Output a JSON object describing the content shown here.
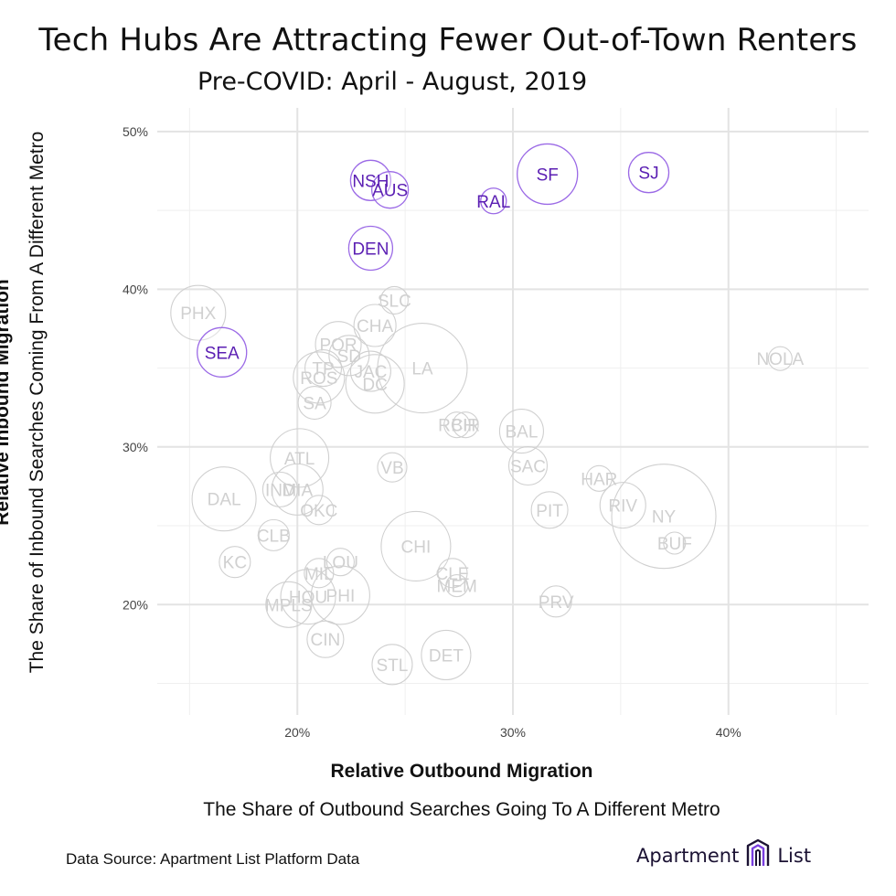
{
  "chart_data": {
    "type": "scatter",
    "title": "Tech Hubs Are Attracting Fewer Out-of-Town Renters",
    "subtitle": "Pre-COVID: April - August, 2019",
    "xlabel": "Relative Outbound Migration",
    "xlabel_sub": "The Share of Outbound Searches Going To A Different Metro",
    "ylabel": "Relative Inbound Migration",
    "ylabel_sub": "The Share of Inbound Searches Coming From A Different Metro",
    "xlim": [
      13.5,
      46.5
    ],
    "ylim": [
      13.0,
      51.5
    ],
    "x_ticks": [
      20,
      30,
      40
    ],
    "x_tick_labels": [
      "20%",
      "30%",
      "40%"
    ],
    "y_ticks": [
      20,
      30,
      40,
      50
    ],
    "y_tick_labels": [
      "20%",
      "30%",
      "40%",
      "50%"
    ],
    "grid": true,
    "highlight_color": "#5b1fb3",
    "highlight_stroke": "#9b6ae6",
    "muted_color": "#d0d0d0",
    "points": [
      {
        "label": "NSH",
        "x": 23.4,
        "y": 46.9,
        "r": 22,
        "highlight": true
      },
      {
        "label": "AUS",
        "x": 24.3,
        "y": 46.3,
        "r": 20,
        "highlight": true
      },
      {
        "label": "SF",
        "x": 31.6,
        "y": 47.3,
        "r": 33,
        "highlight": true
      },
      {
        "label": "SJ",
        "x": 36.3,
        "y": 47.4,
        "r": 22,
        "highlight": true
      },
      {
        "label": "RAL",
        "x": 29.1,
        "y": 45.6,
        "r": 14,
        "highlight": true
      },
      {
        "label": "DEN",
        "x": 23.4,
        "y": 42.6,
        "r": 24,
        "highlight": true
      },
      {
        "label": "SEA",
        "x": 16.5,
        "y": 36.0,
        "r": 27,
        "highlight": true
      },
      {
        "label": "PHX",
        "x": 15.4,
        "y": 38.5,
        "r": 30,
        "highlight": false
      },
      {
        "label": "SLC",
        "x": 24.5,
        "y": 39.3,
        "r": 15,
        "highlight": false
      },
      {
        "label": "CHA",
        "x": 23.6,
        "y": 37.7,
        "r": 23,
        "highlight": false
      },
      {
        "label": "POR",
        "x": 21.9,
        "y": 36.5,
        "r": 25,
        "highlight": false
      },
      {
        "label": "SD",
        "x": 22.4,
        "y": 35.8,
        "r": 22,
        "highlight": false
      },
      {
        "label": "LA",
        "x": 25.8,
        "y": 35.0,
        "r": 49,
        "highlight": false
      },
      {
        "label": "TP",
        "x": 21.2,
        "y": 35.0,
        "r": 20,
        "highlight": false
      },
      {
        "label": "JAC",
        "x": 23.4,
        "y": 34.8,
        "r": 22,
        "highlight": false
      },
      {
        "label": "ROS",
        "x": 21.0,
        "y": 34.4,
        "r": 28,
        "highlight": false
      },
      {
        "label": "DC",
        "x": 23.6,
        "y": 34.0,
        "r": 32,
        "highlight": false
      },
      {
        "label": "SA",
        "x": 20.8,
        "y": 32.8,
        "r": 18,
        "highlight": false
      },
      {
        "label": "NOLA",
        "x": 42.4,
        "y": 35.6,
        "r": 13,
        "highlight": false
      },
      {
        "label": "RCH",
        "x": 27.4,
        "y": 31.4,
        "r": 14,
        "highlight": false
      },
      {
        "label": "BIR",
        "x": 27.8,
        "y": 31.4,
        "r": 14,
        "highlight": false
      },
      {
        "label": "BAL",
        "x": 30.4,
        "y": 31.0,
        "r": 24,
        "highlight": false
      },
      {
        "label": "ATL",
        "x": 20.1,
        "y": 29.3,
        "r": 32,
        "highlight": false
      },
      {
        "label": "VB",
        "x": 24.4,
        "y": 28.7,
        "r": 16,
        "highlight": false
      },
      {
        "label": "SAC",
        "x": 30.7,
        "y": 28.8,
        "r": 21,
        "highlight": false
      },
      {
        "label": "HAR",
        "x": 34.0,
        "y": 28.0,
        "r": 14,
        "highlight": false
      },
      {
        "label": "DAL",
        "x": 16.6,
        "y": 26.7,
        "r": 35,
        "highlight": false
      },
      {
        "label": "IND",
        "x": 19.2,
        "y": 27.3,
        "r": 19,
        "highlight": false
      },
      {
        "label": "MIA",
        "x": 20.0,
        "y": 27.3,
        "r": 28,
        "highlight": false
      },
      {
        "label": "OKC",
        "x": 21.0,
        "y": 26.0,
        "r": 16,
        "highlight": false
      },
      {
        "label": "PIT",
        "x": 31.7,
        "y": 26.0,
        "r": 20,
        "highlight": false
      },
      {
        "label": "RIV",
        "x": 35.1,
        "y": 26.3,
        "r": 25,
        "highlight": false
      },
      {
        "label": "NY",
        "x": 37.0,
        "y": 25.6,
        "r": 57,
        "highlight": false
      },
      {
        "label": "BUF",
        "x": 37.5,
        "y": 23.9,
        "r": 12,
        "highlight": false
      },
      {
        "label": "CLB",
        "x": 18.9,
        "y": 24.4,
        "r": 17,
        "highlight": false
      },
      {
        "label": "KC",
        "x": 17.1,
        "y": 22.7,
        "r": 17,
        "highlight": false
      },
      {
        "label": "CHI",
        "x": 25.5,
        "y": 23.7,
        "r": 38,
        "highlight": false
      },
      {
        "label": "LOU",
        "x": 22.0,
        "y": 22.7,
        "r": 15,
        "highlight": false
      },
      {
        "label": "MIL",
        "x": 21.0,
        "y": 22.0,
        "r": 16,
        "highlight": false
      },
      {
        "label": "CLE",
        "x": 27.2,
        "y": 22.0,
        "r": 16,
        "highlight": false
      },
      {
        "label": "MEM",
        "x": 27.4,
        "y": 21.2,
        "r": 12,
        "highlight": false
      },
      {
        "label": "HOU",
        "x": 20.5,
        "y": 20.5,
        "r": 30,
        "highlight": false
      },
      {
        "label": "PHI",
        "x": 22.0,
        "y": 20.6,
        "r": 32,
        "highlight": false
      },
      {
        "label": "MPLS",
        "x": 19.6,
        "y": 20.0,
        "r": 25,
        "highlight": false
      },
      {
        "label": "PRV",
        "x": 32.0,
        "y": 20.2,
        "r": 17,
        "highlight": false
      },
      {
        "label": "CIN",
        "x": 21.3,
        "y": 17.8,
        "r": 20,
        "highlight": false
      },
      {
        "label": "STL",
        "x": 24.4,
        "y": 16.2,
        "r": 22,
        "highlight": false
      },
      {
        "label": "DET",
        "x": 26.9,
        "y": 16.8,
        "r": 27,
        "highlight": false
      }
    ]
  },
  "footer": {
    "source": "Data Source: Apartment List Platform Data",
    "logo_left": "Apartment",
    "logo_right": "List"
  }
}
